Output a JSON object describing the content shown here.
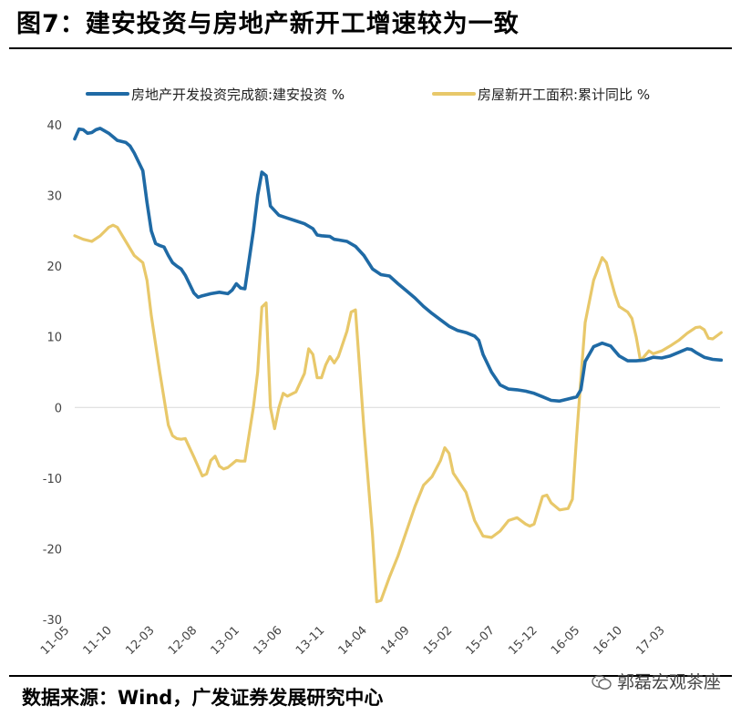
{
  "page": {
    "title": "图7：建安投资与房地产新开工增速较为一致",
    "source": "数据来源：Wind，广发证券发展研究中心",
    "watermark": "郭磊宏观茶座"
  },
  "colors": {
    "series_blue": "#1f6aa5",
    "series_yellow": "#e8c86a",
    "axis": "#d9d9d9"
  },
  "chart_data": {
    "type": "line",
    "title": "",
    "xlabel": "",
    "ylabel": "",
    "ylim": [
      -30,
      40
    ],
    "yticks": [
      40,
      30,
      20,
      10,
      0,
      -10,
      -20,
      -30
    ],
    "grid": false,
    "legend_position": "top",
    "x_range": [
      0,
      75
    ],
    "xtick_labels": [
      {
        "label": "11-05",
        "x": 0
      },
      {
        "label": "11-10",
        "x": 5
      },
      {
        "label": "12-03",
        "x": 10
      },
      {
        "label": "12-08",
        "x": 15
      },
      {
        "label": "13-01",
        "x": 20
      },
      {
        "label": "13-06",
        "x": 25
      },
      {
        "label": "13-11",
        "x": 30
      },
      {
        "label": "14-04",
        "x": 35
      },
      {
        "label": "14-09",
        "x": 40
      },
      {
        "label": "15-02",
        "x": 45
      },
      {
        "label": "15-07",
        "x": 50
      },
      {
        "label": "15-12",
        "x": 55
      },
      {
        "label": "16-05",
        "x": 60
      },
      {
        "label": "16-10",
        "x": 65
      },
      {
        "label": "17-03",
        "x": 70
      }
    ],
    "series": [
      {
        "name": "房地产开发投资完成额:建安投资 %",
        "color": "#1f6aa5",
        "points": [
          [
            0,
            38
          ],
          [
            0.5,
            39.4
          ],
          [
            1,
            39.3
          ],
          [
            1.5,
            38.8
          ],
          [
            2,
            38.9
          ],
          [
            2.5,
            39.3
          ],
          [
            3,
            39.5
          ],
          [
            4,
            38.8
          ],
          [
            5,
            37.8
          ],
          [
            6,
            37.5
          ],
          [
            6.5,
            37
          ],
          [
            7,
            36
          ],
          [
            8,
            33.5
          ],
          [
            8.5,
            29
          ],
          [
            9,
            25
          ],
          [
            9.5,
            23.2
          ],
          [
            10,
            22.9
          ],
          [
            10.5,
            22.7
          ],
          [
            11,
            21.5
          ],
          [
            11.5,
            20.5
          ],
          [
            12,
            20
          ],
          [
            12.5,
            19.6
          ],
          [
            13,
            18.7
          ],
          [
            14,
            16.2
          ],
          [
            14.5,
            15.6
          ],
          [
            15,
            15.8
          ],
          [
            16,
            16.1
          ],
          [
            17,
            16.3
          ],
          [
            18,
            16.1
          ],
          [
            18.5,
            16.6
          ],
          [
            19,
            17.5
          ],
          [
            19.5,
            16.9
          ],
          [
            20,
            16.8
          ],
          [
            21,
            25
          ],
          [
            21.5,
            30
          ],
          [
            22,
            33.3
          ],
          [
            22.5,
            32.8
          ],
          [
            23,
            28.5
          ],
          [
            24,
            27.2
          ],
          [
            25,
            26.8
          ],
          [
            26,
            26.4
          ],
          [
            27,
            26
          ],
          [
            28,
            25.3
          ],
          [
            28.5,
            24.4
          ],
          [
            29,
            24.3
          ],
          [
            30,
            24.2
          ],
          [
            30.5,
            23.8
          ],
          [
            31,
            23.7
          ],
          [
            32,
            23.5
          ],
          [
            33,
            22.8
          ],
          [
            34,
            21.5
          ],
          [
            35,
            19.6
          ],
          [
            36,
            18.8
          ],
          [
            37,
            18.6
          ],
          [
            38,
            17.5
          ],
          [
            39,
            16.5
          ],
          [
            40,
            15.5
          ],
          [
            41,
            14.3
          ],
          [
            42,
            13.3
          ],
          [
            43,
            12.4
          ],
          [
            44,
            11.5
          ],
          [
            45,
            10.9
          ],
          [
            46,
            10.6
          ],
          [
            47,
            10.1
          ],
          [
            47.5,
            9.5
          ],
          [
            48,
            7.5
          ],
          [
            49,
            5
          ],
          [
            50,
            3.2
          ],
          [
            51,
            2.6
          ],
          [
            52,
            2.5
          ],
          [
            53,
            2.3
          ],
          [
            54,
            2
          ],
          [
            55,
            1.5
          ],
          [
            56,
            1
          ],
          [
            57,
            0.9
          ],
          [
            58,
            1.2
          ],
          [
            59,
            1.5
          ],
          [
            59.5,
            2.5
          ],
          [
            60,
            6.5
          ],
          [
            61,
            8.6
          ],
          [
            62,
            9.1
          ],
          [
            63,
            8.7
          ],
          [
            64,
            7.3
          ],
          [
            65,
            6.6
          ],
          [
            66,
            6.6
          ],
          [
            67,
            6.7
          ],
          [
            68,
            7.1
          ],
          [
            69,
            7
          ],
          [
            70,
            7.3
          ],
          [
            71,
            7.8
          ],
          [
            72,
            8.3
          ],
          [
            72.5,
            8.2
          ],
          [
            73,
            7.8
          ],
          [
            74,
            7.1
          ],
          [
            75,
            6.8
          ],
          [
            76,
            6.7
          ]
        ]
      },
      {
        "name": "房屋新开工面积:累计同比 %",
        "color": "#e8c86a",
        "points": [
          [
            0,
            24.3
          ],
          [
            1,
            23.8
          ],
          [
            2,
            23.5
          ],
          [
            3,
            24.3
          ],
          [
            4,
            25.5
          ],
          [
            4.5,
            25.8
          ],
          [
            5,
            25.5
          ],
          [
            6,
            23.5
          ],
          [
            7,
            21.5
          ],
          [
            8,
            20.5
          ],
          [
            8.5,
            18
          ],
          [
            9,
            13
          ],
          [
            10,
            5
          ],
          [
            11,
            -2.5
          ],
          [
            11.5,
            -4
          ],
          [
            12,
            -4.4
          ],
          [
            12.5,
            -4.5
          ],
          [
            13,
            -4.4
          ],
          [
            14,
            -7
          ],
          [
            15,
            -9.7
          ],
          [
            15.5,
            -9.4
          ],
          [
            16,
            -7.5
          ],
          [
            16.5,
            -6.9
          ],
          [
            17,
            -8.3
          ],
          [
            17.5,
            -8.7
          ],
          [
            18,
            -8.5
          ],
          [
            19,
            -7.5
          ],
          [
            19.5,
            -7.6
          ],
          [
            20,
            -7.6
          ],
          [
            21,
            0
          ],
          [
            21.5,
            5
          ],
          [
            22,
            14.2
          ],
          [
            22.5,
            14.8
          ],
          [
            23,
            0
          ],
          [
            23.5,
            -3
          ],
          [
            24,
            0
          ],
          [
            24.5,
            2
          ],
          [
            25,
            1.6
          ],
          [
            26,
            2.2
          ],
          [
            27,
            4.8
          ],
          [
            27.5,
            8.3
          ],
          [
            28,
            7.5
          ],
          [
            28.5,
            4.2
          ],
          [
            29,
            4.2
          ],
          [
            29.5,
            6
          ],
          [
            30,
            7.2
          ],
          [
            30.5,
            6.3
          ],
          [
            31,
            7.2
          ],
          [
            32,
            10.8
          ],
          [
            32.5,
            13.5
          ],
          [
            33,
            13.8
          ],
          [
            34,
            -3
          ],
          [
            35,
            -18
          ],
          [
            35.5,
            -27.5
          ],
          [
            36,
            -27.3
          ],
          [
            37,
            -24
          ],
          [
            38,
            -21
          ],
          [
            39,
            -17.5
          ],
          [
            40,
            -14
          ],
          [
            41,
            -11
          ],
          [
            42,
            -9.8
          ],
          [
            43,
            -7.5
          ],
          [
            43.5,
            -5.7
          ],
          [
            44,
            -6.5
          ],
          [
            44.5,
            -9.3
          ],
          [
            45,
            -10.2
          ],
          [
            46,
            -12
          ],
          [
            47,
            -16
          ],
          [
            48,
            -18.2
          ],
          [
            49,
            -18.4
          ],
          [
            50,
            -17.5
          ],
          [
            51,
            -16
          ],
          [
            52,
            -15.6
          ],
          [
            53,
            -16.5
          ],
          [
            53.5,
            -16.8
          ],
          [
            54,
            -16.5
          ],
          [
            55,
            -12.6
          ],
          [
            55.5,
            -12.4
          ],
          [
            56,
            -13.5
          ],
          [
            57,
            -14.5
          ],
          [
            58,
            -14.3
          ],
          [
            58.5,
            -13
          ],
          [
            59,
            -4
          ],
          [
            59.5,
            4
          ],
          [
            60,
            12
          ],
          [
            61,
            18
          ],
          [
            62,
            21.2
          ],
          [
            62.5,
            20.5
          ],
          [
            63,
            18.2
          ],
          [
            63.5,
            16
          ],
          [
            64,
            14.3
          ],
          [
            65,
            13.5
          ],
          [
            65.5,
            12.6
          ],
          [
            66,
            10
          ],
          [
            66.5,
            6.6
          ],
          [
            67,
            7.3
          ],
          [
            67.5,
            8
          ],
          [
            68,
            7.6
          ],
          [
            69,
            8
          ],
          [
            70,
            8.7
          ],
          [
            71,
            9.5
          ],
          [
            72,
            10.5
          ],
          [
            73,
            11.3
          ],
          [
            73.5,
            11.4
          ],
          [
            74,
            11
          ],
          [
            74.5,
            9.8
          ],
          [
            75,
            9.7
          ],
          [
            76,
            10.6
          ]
        ]
      }
    ]
  }
}
